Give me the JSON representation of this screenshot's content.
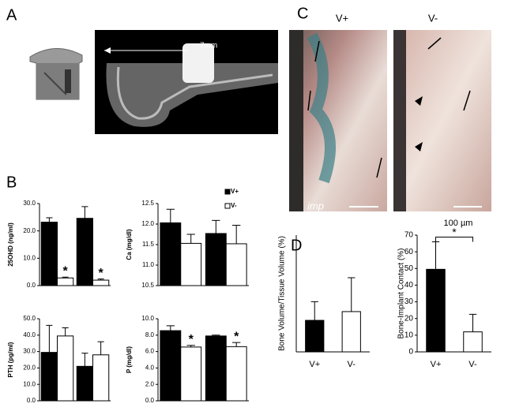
{
  "panel_labels": [
    "A",
    "B",
    "C",
    "D"
  ],
  "panel_a": {
    "scale_label": "7mm"
  },
  "panel_c": {
    "columns": [
      "V+",
      "V-"
    ],
    "imp_label": "imp",
    "scale_label": "100 µm"
  },
  "chart_data": [
    {
      "type": "bar",
      "ylabel": "25OHD (ng/ml)",
      "categories": [
        null,
        null
      ],
      "ylim": [
        0,
        30
      ],
      "yticks": [
        {
          "value": 0,
          "label": "0.0"
        },
        {
          "value": 10,
          "label": "10.0"
        },
        {
          "value": 20,
          "label": "20.0"
        },
        {
          "value": 30,
          "label": "30.0"
        }
      ],
      "series": [
        {
          "name": "V+",
          "color": "#000000",
          "values": [
            23.2,
            24.6
          ],
          "errors": [
            1.6,
            4.3
          ]
        },
        {
          "name": "V-",
          "color": "#ffffff",
          "values": [
            2.8,
            2.0
          ],
          "errors": [
            0.3,
            0.4
          ],
          "annotations": [
            "*",
            "*"
          ]
        }
      ]
    },
    {
      "type": "bar",
      "ylabel": "Ca (mg/dl)",
      "categories": [
        null,
        null
      ],
      "ylim": [
        10.5,
        12.5
      ],
      "yticks": [
        10.5,
        {
          "value": 11,
          "label": "11.0"
        },
        11.5,
        {
          "value": 12,
          "label": "12.0"
        },
        12.5
      ],
      "series": [
        {
          "color": "#000000",
          "values": [
            12.03,
            11.77
          ],
          "errors": [
            0.33,
            0.32
          ]
        },
        {
          "color": "#ffffff",
          "values": [
            11.53,
            11.52
          ],
          "errors": [
            0.22,
            0.45
          ]
        }
      ]
    },
    {
      "type": "bar",
      "ylabel": "PTH (pg/ml)",
      "categories": [
        null,
        null
      ],
      "ylim": [
        0,
        50
      ],
      "yticks": [
        {
          "value": 0,
          "label": "0.0"
        },
        {
          "value": 10,
          "label": "10.0"
        },
        {
          "value": 20,
          "label": "20.0"
        },
        {
          "value": 30,
          "label": "30.0"
        },
        {
          "value": 40,
          "label": "40.0"
        },
        {
          "value": 50,
          "label": "50.0"
        }
      ],
      "series": [
        {
          "color": "#000000",
          "values": [
            29.5,
            21
          ],
          "errors": [
            16.5,
            8
          ]
        },
        {
          "color": "#ffffff",
          "values": [
            39.5,
            28
          ],
          "errors": [
            5,
            8
          ]
        }
      ]
    },
    {
      "type": "bar",
      "ylabel": "P (mg/dl)",
      "categories": [
        null,
        null
      ],
      "ylim": [
        0,
        10
      ],
      "yticks": [
        {
          "value": 0,
          "label": "0.0"
        },
        {
          "value": 2,
          "label": "2.0"
        },
        {
          "value": 4,
          "label": "4.0"
        },
        {
          "value": 6,
          "label": "6.0"
        },
        {
          "value": 8,
          "label": "8.0"
        },
        {
          "value": 10,
          "label": "10.0"
        }
      ],
      "series": [
        {
          "color": "#000000",
          "values": [
            8.55,
            7.9
          ],
          "errors": [
            0.6,
            0.1
          ]
        },
        {
          "color": "#ffffff",
          "values": [
            6.55,
            6.6
          ],
          "errors": [
            0.2,
            0.5
          ],
          "annotations": [
            "*",
            "*"
          ]
        }
      ]
    },
    {
      "type": "bar",
      "ylabel": "Bone Volume/Tissue Volume (%)",
      "categories": [
        "V+",
        "V-"
      ],
      "ylim": [
        0,
        100
      ],
      "series": [
        {
          "colors": [
            "#000000",
            "#ffffff"
          ],
          "values": [
            27,
            34.5
          ],
          "errors": [
            16,
            29
          ]
        }
      ]
    },
    {
      "type": "bar",
      "ylabel": "Bone-Implant Contact (%)",
      "categories": [
        "V+",
        "V-"
      ],
      "ylim": [
        0,
        70
      ],
      "yticks": [
        0,
        10,
        20,
        30,
        40,
        50,
        60,
        70
      ],
      "significance": "*",
      "series": [
        {
          "colors": [
            "#000000",
            "#ffffff"
          ],
          "values": [
            49.5,
            12
          ],
          "errors": [
            16.5,
            10.5
          ]
        }
      ]
    }
  ]
}
